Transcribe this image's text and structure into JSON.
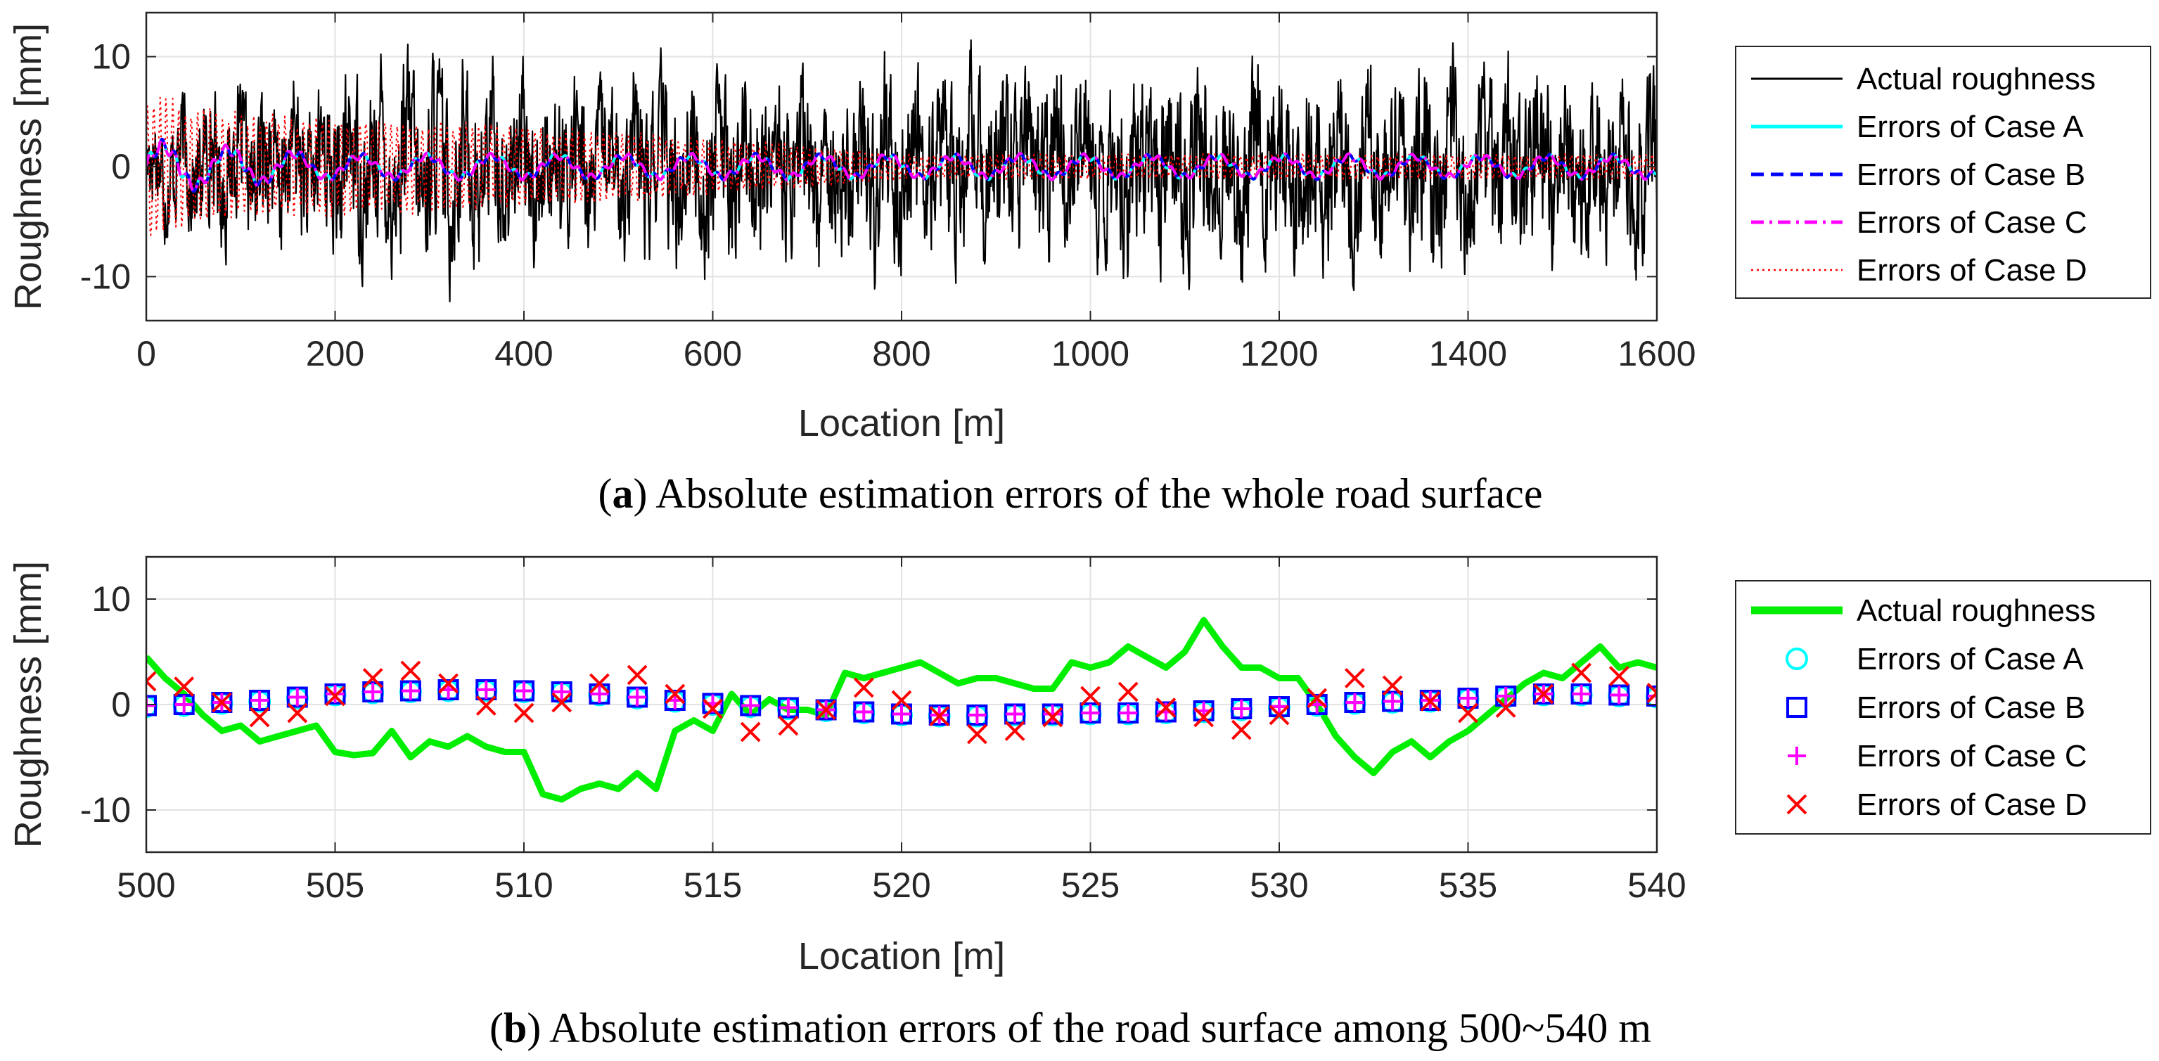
{
  "chart_data": [
    {
      "type": "line",
      "panel": "a",
      "caption_letter": "a",
      "caption_text": "Absolute estimation errors of the whole road surface",
      "xlabel": "Location [m]",
      "ylabel": "Roughness [mm]",
      "xlim": [
        0,
        1600
      ],
      "ylim": [
        -14,
        14
      ],
      "xticks": [
        0,
        200,
        400,
        600,
        800,
        1000,
        1200,
        1400,
        1600
      ],
      "yticks": [
        -10,
        0,
        10
      ],
      "grid": true,
      "legend_position": "right",
      "series": [
        {
          "name": "Actual roughness",
          "color": "#000000",
          "style": "solid",
          "amplitude": [
            [
              0,
              5
            ],
            [
              300,
              8.5
            ],
            [
              400,
              7
            ],
            [
              800,
              8
            ],
            [
              1600,
              8
            ]
          ]
        },
        {
          "name": "Errors of Case A",
          "color": "#00ffff",
          "style": "solid",
          "amplitude": [
            [
              0,
              2.5
            ],
            [
              200,
              1.2
            ],
            [
              1600,
              1.1
            ]
          ]
        },
        {
          "name": "Errors of Case B",
          "color": "#0000ff",
          "style": "dashed",
          "amplitude": [
            [
              0,
              2.5
            ],
            [
              200,
              1.2
            ],
            [
              1600,
              1.1
            ]
          ]
        },
        {
          "name": "Errors of Case C",
          "color": "#ff00ff",
          "style": "dashdot",
          "amplitude": [
            [
              0,
              2.5
            ],
            [
              200,
              1.2
            ],
            [
              1600,
              1.1
            ]
          ]
        },
        {
          "name": "Errors of Case D",
          "color": "#ff0000",
          "style": "dotted",
          "amplitude": [
            [
              0,
              7
            ],
            [
              100,
              5
            ],
            [
              400,
              4
            ],
            [
              700,
              2
            ],
            [
              800,
              1.2
            ],
            [
              1600,
              1.2
            ]
          ]
        }
      ]
    },
    {
      "type": "scatter",
      "panel": "b",
      "caption_letter": "b",
      "caption_text": "Absolute estimation errors of the road surface among 500~540 m",
      "xlabel": "Location [m]",
      "ylabel": "Roughness [mm]",
      "xlim": [
        500,
        540
      ],
      "ylim": [
        -14,
        14
      ],
      "xticks": [
        500,
        505,
        510,
        515,
        520,
        525,
        530,
        535,
        540
      ],
      "yticks": [
        -10,
        0,
        10
      ],
      "grid": true,
      "legend_position": "right",
      "actual_roughness": {
        "name": "Actual roughness",
        "color": "#00ee00",
        "x": [
          500,
          500.5,
          501,
          501.5,
          502,
          502.5,
          503,
          503.5,
          504,
          504.5,
          505,
          505.5,
          506,
          506.5,
          507,
          507.5,
          508,
          508.5,
          509,
          509.5,
          510,
          510.5,
          511,
          511.5,
          512,
          512.5,
          513,
          513.5,
          514,
          514.5,
          515,
          515.5,
          516,
          516.5,
          517,
          517.5,
          518,
          518.5,
          519,
          519.5,
          520,
          520.5,
          521,
          521.5,
          522,
          522.5,
          523,
          523.5,
          524,
          524.5,
          525,
          525.5,
          526,
          526.5,
          527,
          527.5,
          528,
          528.5,
          529,
          529.5,
          530,
          530.5,
          531,
          531.5,
          532,
          532.5,
          533,
          533.5,
          534,
          534.5,
          535,
          535.5,
          536,
          536.5,
          537,
          537.5,
          538,
          538.5,
          539,
          539.5,
          540
        ],
        "y": [
          4.5,
          2.5,
          1.0,
          -1.0,
          -2.5,
          -2.0,
          -3.5,
          -3.0,
          -2.5,
          -2.0,
          -4.5,
          -4.8,
          -4.6,
          -2.5,
          -5.0,
          -3.5,
          -4.0,
          -3.0,
          -4.0,
          -4.5,
          -4.5,
          -8.5,
          -9.0,
          -8.0,
          -7.5,
          -8.0,
          -6.5,
          -8.0,
          -2.5,
          -1.5,
          -2.5,
          1.0,
          -1.0,
          0.5,
          -0.5,
          -0.5,
          -1.0,
          3.0,
          2.5,
          3.0,
          3.5,
          4.0,
          3.0,
          2.0,
          2.5,
          2.5,
          2.0,
          1.5,
          1.5,
          4.0,
          3.5,
          4.0,
          5.5,
          4.5,
          3.5,
          5.0,
          8.0,
          5.5,
          3.5,
          3.5,
          2.5,
          2.5,
          0.0,
          -3.0,
          -5.0,
          -6.5,
          -4.5,
          -3.5,
          -5.0,
          -3.5,
          -2.5,
          -1.0,
          0.5,
          2.0,
          3.0,
          2.5,
          4.0,
          5.5,
          3.5,
          4.0,
          3.5
        ]
      },
      "error_x": [
        500,
        501,
        502,
        503,
        504,
        505,
        506,
        507,
        508,
        509,
        510,
        511,
        512,
        513,
        514,
        515,
        516,
        517,
        518,
        519,
        520,
        521,
        522,
        523,
        524,
        525,
        526,
        527,
        528,
        529,
        530,
        531,
        532,
        533,
        534,
        535,
        536,
        537,
        538,
        539,
        540
      ],
      "error_series": [
        {
          "name": "Errors of Case A",
          "color": "#00ffff",
          "marker": "circle",
          "values": [
            -0.2,
            -0.1,
            0.1,
            0.3,
            0.6,
            0.9,
            1.1,
            1.2,
            1.3,
            1.3,
            1.2,
            1.1,
            0.9,
            0.6,
            0.3,
            0.0,
            -0.2,
            -0.4,
            -0.6,
            -0.8,
            -1.0,
            -1.1,
            -1.1,
            -1.0,
            -1.0,
            -0.9,
            -0.9,
            -0.8,
            -0.7,
            -0.5,
            -0.3,
            -0.1,
            0.1,
            0.2,
            0.3,
            0.5,
            0.7,
            0.9,
            0.9,
            0.8,
            0.7
          ]
        },
        {
          "name": "Errors of Case B",
          "color": "#0000ff",
          "marker": "square",
          "values": [
            -0.1,
            0.0,
            0.2,
            0.4,
            0.7,
            1.0,
            1.2,
            1.3,
            1.4,
            1.4,
            1.3,
            1.2,
            1.0,
            0.7,
            0.4,
            0.1,
            -0.1,
            -0.3,
            -0.5,
            -0.7,
            -0.9,
            -1.0,
            -1.0,
            -0.9,
            -0.9,
            -0.8,
            -0.8,
            -0.7,
            -0.6,
            -0.4,
            -0.2,
            0.0,
            0.2,
            0.3,
            0.4,
            0.6,
            0.8,
            1.0,
            1.0,
            0.9,
            0.8
          ]
        },
        {
          "name": "Errors of Case C",
          "color": "#ff00ff",
          "marker": "plus",
          "values": [
            -0.1,
            0.0,
            0.2,
            0.4,
            0.7,
            1.0,
            1.2,
            1.3,
            1.4,
            1.4,
            1.3,
            1.2,
            1.0,
            0.7,
            0.4,
            0.1,
            -0.1,
            -0.3,
            -0.5,
            -0.7,
            -0.9,
            -1.0,
            -1.0,
            -0.9,
            -0.9,
            -0.8,
            -0.8,
            -0.7,
            -0.6,
            -0.4,
            -0.2,
            0.0,
            0.2,
            0.3,
            0.4,
            0.6,
            0.8,
            1.0,
            1.0,
            0.9,
            0.8
          ]
        },
        {
          "name": "Errors of Case D",
          "color": "#ff0000",
          "marker": "x",
          "values": [
            2.2,
            1.7,
            0.2,
            -1.2,
            -0.8,
            0.8,
            2.5,
            3.2,
            2.0,
            -0.1,
            -0.8,
            0.2,
            2.0,
            2.8,
            1.0,
            -0.4,
            -2.6,
            -2.0,
            -0.5,
            1.6,
            0.4,
            -1.1,
            -2.8,
            -2.5,
            -1.2,
            0.8,
            1.2,
            -0.3,
            -1.2,
            -2.4,
            -1.0,
            0.6,
            2.5,
            1.8,
            0.3,
            -0.8,
            -0.3,
            1.0,
            3.0,
            2.7,
            1.1
          ]
        }
      ]
    }
  ]
}
